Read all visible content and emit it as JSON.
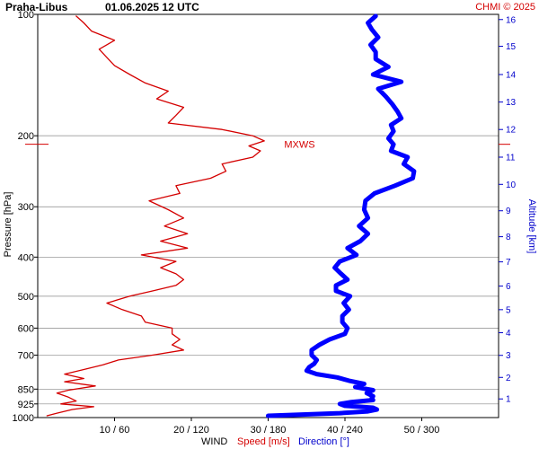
{
  "header": {
    "station": "Praha-Libus",
    "datetime": "01.06.2025 12 UTC",
    "credit": "CHMI © 2025"
  },
  "footer": {
    "wind": "WIND",
    "speed": "Speed [m/s]",
    "direction": "Direction [°]"
  },
  "colors": {
    "speed": "#d40000",
    "direction": "#0000ff",
    "grid": "#888888"
  },
  "chart_data": {
    "type": "line",
    "title": "Praha-Libus   01.06.2025 12 UTC",
    "ylabel": "Pressure [hPa]",
    "y2label": "Altitude [km]",
    "xlabel": "WIND",
    "y_scale": "log",
    "y_inverted": true,
    "ylim": [
      1000,
      100
    ],
    "pressure_ticks": [
      "100",
      "200",
      "300",
      "400",
      "500",
      "600",
      "700",
      "850",
      "925",
      "1000"
    ],
    "x_tick_labels": [
      "10 / 60",
      "20 / 120",
      "30 / 180",
      "40 / 240",
      "50 / 300"
    ],
    "x_ticks": [
      10,
      20,
      30,
      40,
      50
    ],
    "xlim": [
      0,
      60
    ],
    "altitude_km_ticks": [
      "1",
      "2",
      "3",
      "4",
      "5",
      "6",
      "7",
      "8",
      "9",
      "10",
      "11",
      "12",
      "13",
      "14",
      "15",
      "16"
    ],
    "altitude_km_pressure": [
      899,
      795,
      701,
      616,
      540,
      472,
      411,
      356,
      307,
      264,
      226,
      193,
      165,
      141,
      120,
      103
    ],
    "annotation": {
      "text": "MXWS",
      "pressure": 210,
      "speed": 31.5
    },
    "series": [
      {
        "name": "Speed [m/s]",
        "units": "m/s",
        "pressure": [
          990,
          975,
          955,
          940,
          925,
          910,
          890,
          870,
          855,
          835,
          815,
          800,
          780,
          760,
          740,
          720,
          700,
          680,
          660,
          640,
          620,
          600,
          580,
          560,
          540,
          520,
          500,
          485,
          470,
          455,
          440,
          425,
          410,
          395,
          380,
          365,
          350,
          335,
          320,
          305,
          290,
          278,
          266,
          255,
          245,
          235,
          226,
          218,
          212,
          206,
          200,
          193,
          186,
          178,
          170,
          162,
          155,
          148,
          141,
          134,
          128,
          122,
          116,
          110,
          105,
          101
        ],
        "values": [
          1.2,
          2.5,
          4.5,
          7.3,
          3,
          5,
          4,
          2.5,
          4,
          7.5,
          3.5,
          6,
          3.5,
          6,
          8.5,
          10.5,
          15,
          19,
          17.5,
          18.5,
          17.5,
          17.5,
          14,
          13.5,
          11,
          9,
          12,
          15,
          18,
          19,
          18,
          16,
          18,
          13.5,
          19.5,
          16,
          19.5,
          16.5,
          19,
          17,
          14.5,
          18.5,
          18,
          22.5,
          24.5,
          24,
          28,
          29,
          27.5,
          29.5,
          28,
          24,
          17,
          18,
          19,
          15.5,
          17,
          14,
          12,
          10,
          9,
          8,
          10,
          7,
          6,
          5
        ]
      },
      {
        "name": "Direction [°]",
        "units": "deg",
        "pressure": [
          990,
          975,
          965,
          955,
          945,
          935,
          925,
          915,
          905,
          895,
          885,
          870,
          855,
          840,
          825,
          810,
          795,
          780,
          765,
          750,
          735,
          720,
          700,
          680,
          660,
          640,
          620,
          600,
          580,
          560,
          540,
          520,
          500,
          485,
          470,
          455,
          440,
          425,
          410,
          395,
          380,
          365,
          350,
          335,
          320,
          305,
          290,
          278,
          266,
          255,
          245,
          235,
          226,
          218,
          210,
          203,
          195,
          188,
          181,
          174,
          167,
          160,
          153,
          147,
          141,
          135,
          129,
          124,
          119,
          114,
          109,
          105,
          101
        ],
        "values": [
          180,
          236,
          258,
          265,
          262,
          240,
          236,
          245,
          262,
          261,
          262,
          257,
          262,
          248,
          255,
          243,
          234,
          218,
          210,
          212,
          216,
          218,
          214,
          214,
          220,
          228,
          240,
          242,
          238,
          238,
          243,
          239,
          244,
          233,
          233,
          242,
          237,
          232,
          236,
          249,
          242,
          252,
          258,
          251,
          258,
          255,
          256,
          263,
          279,
          293,
          294,
          286,
          289,
          276,
          278,
          274,
          278,
          276,
          284,
          281,
          277,
          272,
          266,
          284,
          262,
          274,
          264,
          264,
          260,
          266,
          261,
          258,
          264
        ]
      }
    ]
  }
}
